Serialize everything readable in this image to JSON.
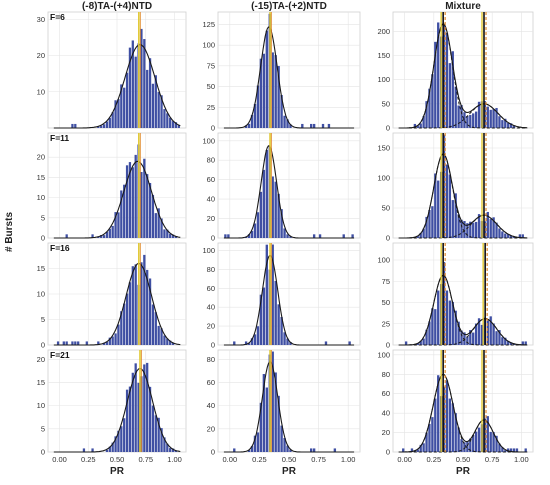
{
  "chart_data": {
    "type": "histogram-grid",
    "xlabel": "PR",
    "ylabel": "# Bursts",
    "columns": [
      "(-8)TA-(+4)NTD",
      "(-15)TA-(+2)NTD",
      "Mixture"
    ],
    "rows": [
      "F=6",
      "F=11",
      "F=16",
      "F=21"
    ],
    "xlim": [
      -0.1,
      1.1
    ],
    "xticks": [
      0.0,
      0.25,
      0.5,
      0.75,
      1.0
    ],
    "xtick_labels": [
      "0.00",
      "0.25",
      "0.50",
      "0.75",
      "1.00"
    ],
    "ylims": [
      [
        [
          0,
          32
        ],
        [
          0,
          140
        ],
        [
          0,
          240
        ]
      ],
      [
        [
          0,
          26
        ],
        [
          0,
          108
        ],
        [
          0,
          175
        ]
      ],
      [
        [
          0,
          20
        ],
        [
          0,
          108
        ],
        [
          0,
          120
        ]
      ],
      [
        [
          0,
          22
        ],
        [
          0,
          88
        ],
        [
          0,
          105
        ]
      ]
    ],
    "yticks": [
      [
        [
          10,
          20,
          30
        ],
        [
          0,
          25,
          50,
          75,
          100,
          125
        ],
        [
          0,
          50,
          100,
          150,
          200
        ]
      ],
      [
        [
          0,
          5,
          10,
          15,
          20
        ],
        [
          0,
          20,
          40,
          60,
          80,
          100
        ],
        [
          0,
          50,
          100,
          150
        ]
      ],
      [
        [
          0,
          5,
          10,
          15
        ],
        [
          0,
          20,
          40,
          60,
          80,
          100
        ],
        [
          0,
          25,
          50,
          75,
          100
        ]
      ],
      [
        [
          0,
          5,
          10,
          15,
          20
        ],
        [
          0,
          20,
          40,
          60,
          80
        ],
        [
          0,
          20,
          40,
          60,
          80,
          100
        ]
      ]
    ],
    "fits": [
      [
        {
          "mu": 0.7,
          "sigma": 0.13,
          "peak": 23,
          "line": 0.69
        },
        {
          "mu": 0.33,
          "sigma": 0.07,
          "peak": 122,
          "line": 0.34
        },
        {
          "mus": [
            0.33,
            0.68
          ],
          "sigmas": [
            0.08,
            0.12
          ],
          "peaks": [
            215,
            50
          ],
          "lines": [
            0.33,
            0.68
          ]
        }
      ],
      [
        {
          "mu": 0.68,
          "sigma": 0.12,
          "peak": 19,
          "line": 0.69
        },
        {
          "mu": 0.33,
          "sigma": 0.065,
          "peak": 95,
          "line": 0.34
        },
        {
          "mus": [
            0.33,
            0.68
          ],
          "sigmas": [
            0.08,
            0.11
          ],
          "peaks": [
            140,
            38
          ],
          "lines": [
            0.33,
            0.68
          ]
        }
      ],
      [
        {
          "mu": 0.69,
          "sigma": 0.11,
          "peak": 16,
          "line": 0.69
        },
        {
          "mu": 0.34,
          "sigma": 0.065,
          "peak": 95,
          "line": 0.34
        },
        {
          "mus": [
            0.33,
            0.69
          ],
          "sigmas": [
            0.08,
            0.1
          ],
          "peaks": [
            82,
            31
          ],
          "lines": [
            0.33,
            0.69
          ]
        }
      ],
      [
        {
          "mu": 0.7,
          "sigma": 0.11,
          "peak": 18,
          "line": 0.7
        },
        {
          "mu": 0.34,
          "sigma": 0.065,
          "peak": 78,
          "line": 0.34
        },
        {
          "mus": [
            0.33,
            0.68
          ],
          "sigmas": [
            0.085,
            0.08
          ],
          "peaks": [
            80,
            33
          ],
          "lines": [
            0.33,
            0.68
          ]
        }
      ]
    ],
    "colors": {
      "bar": "#3f4fa3",
      "fit": "#1a1a1a",
      "line_yellow": "#e0c830",
      "line_orange": "#e08a2e",
      "panel_bg": "#ffffff",
      "grid": "#e4e4e4"
    }
  }
}
